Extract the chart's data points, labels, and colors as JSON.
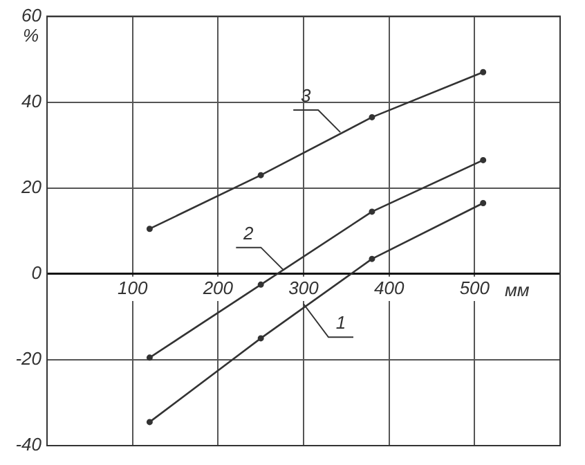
{
  "chart_data": {
    "type": "line",
    "xlabel": "мм",
    "ylabel": "%",
    "x": [
      120,
      250,
      380,
      510
    ],
    "series": [
      {
        "color": "#333333",
        "values": [
          -34.5,
          -15,
          3.5,
          16.5
        ]
      },
      {
        "color": "#333333",
        "values": [
          -19.5,
          -2.5,
          14.5,
          26.5
        ]
      },
      {
        "color": "#333333",
        "values": [
          10.5,
          23,
          36.5,
          47
        ]
      }
    ],
    "annotations": [
      {
        "text": "1",
        "x": 300,
        "y": -7
      },
      {
        "text": "2",
        "x": 276,
        "y": 1
      },
      {
        "text": "3",
        "x": 343,
        "y": 33
      }
    ],
    "xlim": [
      0,
      600
    ],
    "xticks": [
      {
        "value": 0,
        "label": null
      },
      100,
      200,
      300,
      400,
      500,
      {
        "value": 600,
        "label": null
      }
    ],
    "ylim": [
      -40,
      60
    ],
    "yticks": [
      -40,
      -20,
      0,
      20,
      40,
      60
    ],
    "grid": true,
    "legend": false,
    "marker": "circle",
    "line_style": "solid"
  }
}
